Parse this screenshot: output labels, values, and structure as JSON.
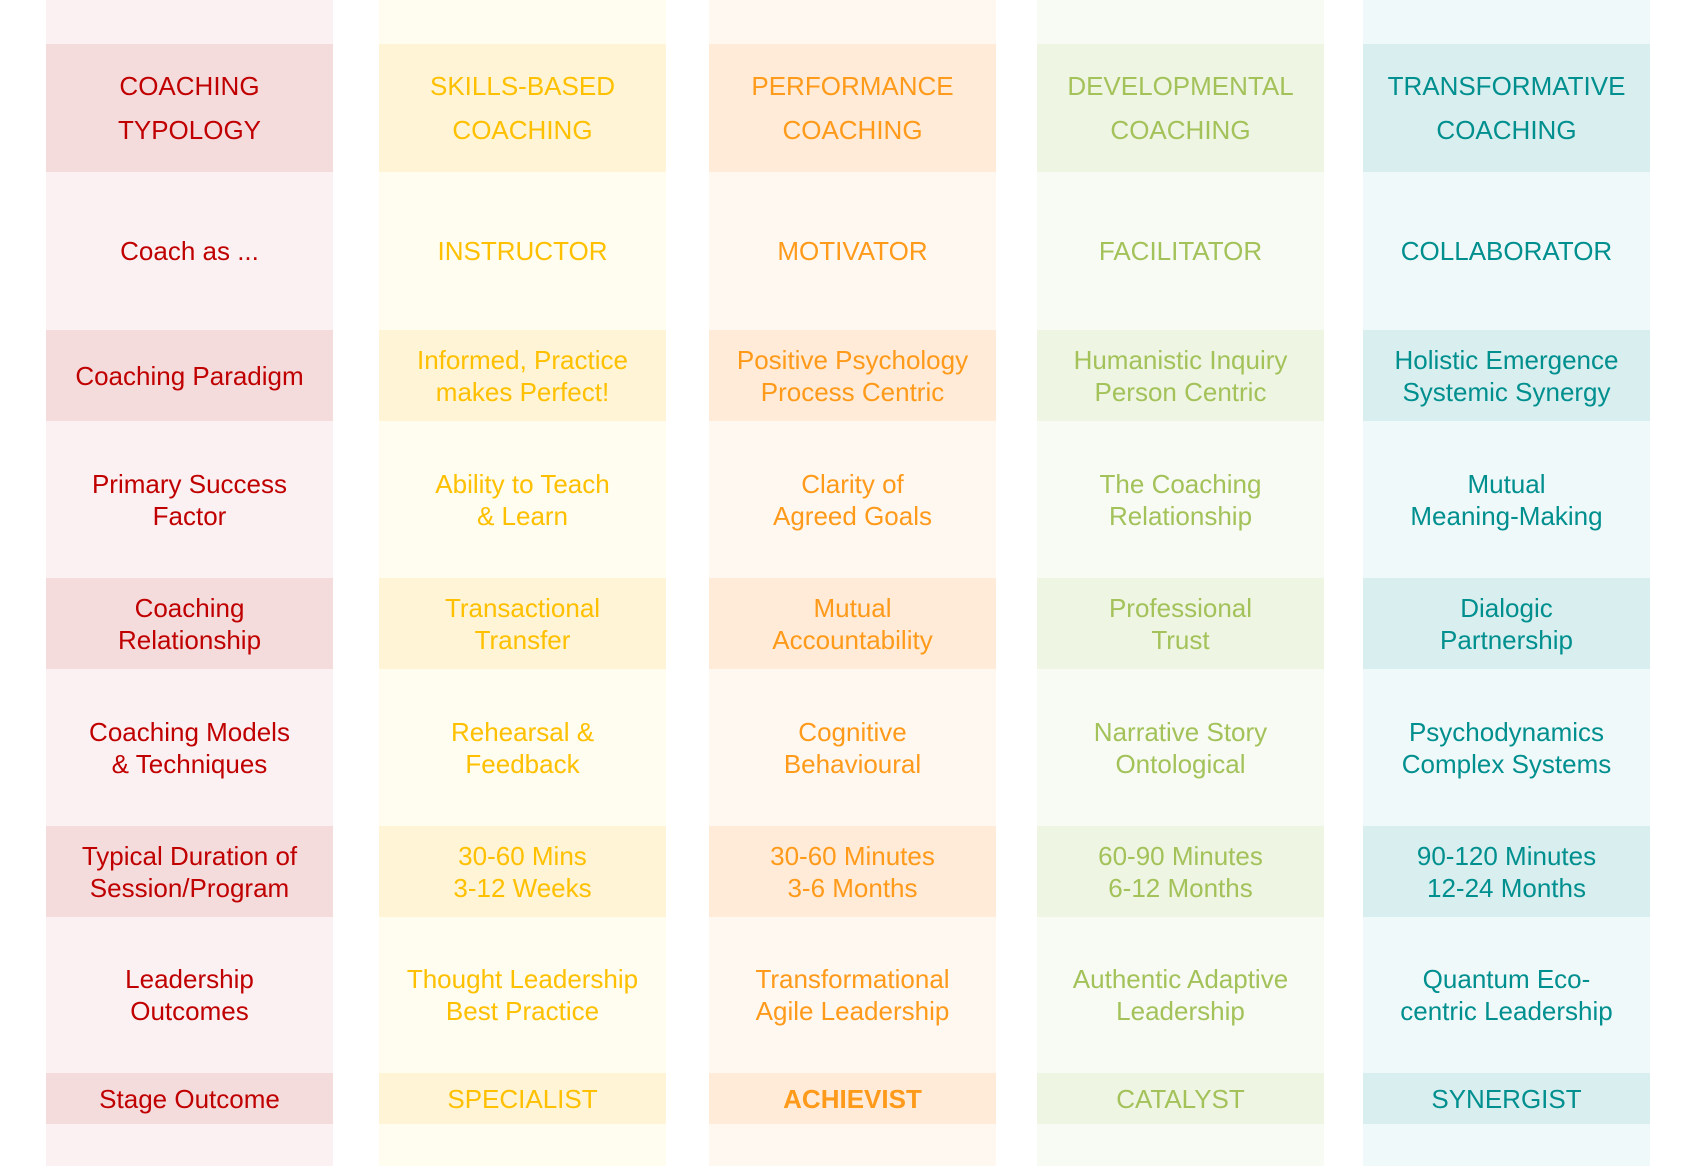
{
  "columns": [
    {
      "key": "typology",
      "text_color": "#c00000",
      "dark_bg": "#f4dcdd",
      "light_bg": "#fbf1f2",
      "cells": [
        "COACHING\nTYPOLOGY",
        "Coach as ...",
        "Coaching Paradigm",
        "Primary Success\nFactor",
        "Coaching\nRelationship",
        "Coaching Models\n& Techniques",
        "Typical Duration of\nSession/Program",
        "Leadership\nOutcomes",
        "Stage Outcome"
      ]
    },
    {
      "key": "skills-based",
      "text_color": "#ffc000",
      "dark_bg": "#fff4d6",
      "light_bg": "#fffcf0",
      "cells": [
        "SKILLS-BASED\nCOACHING",
        "INSTRUCTOR",
        "Informed, Practice\nmakes Perfect!",
        "Ability to Teach\n& Learn",
        "Transactional\nTransfer",
        "Rehearsal &\nFeedback",
        "30-60 Mins\n3-12 Weeks",
        "Thought Leadership\nBest Practice",
        "SPECIALIST"
      ]
    },
    {
      "key": "performance",
      "text_color": "#ff9a1a",
      "dark_bg": "#ffebd7",
      "light_bg": "#fff8f1",
      "cells": [
        "PERFORMANCE\nCOACHING",
        "MOTIVATOR",
        "Positive Psychology\nProcess Centric",
        "Clarity of\nAgreed Goals",
        "Mutual\nAccountability",
        "Cognitive\nBehavioural",
        "30-60 Minutes\n3-6 Months",
        "Transformational\nAgile Leadership",
        "ACHIEVIST"
      ]
    },
    {
      "key": "developmental",
      "text_color": "#a3c25a",
      "dark_bg": "#eff5e3",
      "light_bg": "#f8fbf4",
      "cells": [
        "DEVELOPMENTAL\nCOACHING",
        "FACILITATOR",
        "Humanistic Inquiry\nPerson Centric",
        "The Coaching\nRelationship",
        "Professional\nTrust",
        "Narrative Story\nOntological",
        "60-90 Minutes\n6-12 Months",
        "Authentic Adaptive\nLeadership",
        "CATALYST"
      ]
    },
    {
      "key": "transformative",
      "text_color": "#008f8f",
      "dark_bg": "#d9eeee",
      "light_bg": "#f0f9f9",
      "cells": [
        "TRANSFORMATIVE\nCOACHING",
        "COLLABORATOR",
        "Holistic Emergence\nSystemic Synergy",
        "Mutual\nMeaning-Making",
        "Dialogic\nPartnership",
        "Psychodynamics\nComplex Systems",
        "90-120 Minutes\n12-24 Months",
        "Quantum Eco-\ncentric Leadership",
        "SYNERGIST"
      ]
    }
  ]
}
